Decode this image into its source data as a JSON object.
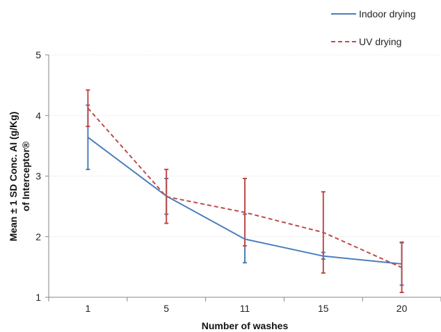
{
  "chart_data": {
    "type": "line",
    "categories": [
      "1",
      "5",
      "11",
      "15",
      "20"
    ],
    "xlabel": "Number of washes",
    "ylabel_lines": [
      "Mean ± 1 SD Conc. AI (g/Kg)",
      "of Interceptor®"
    ],
    "ylim": [
      1,
      5
    ],
    "yticks": [
      "1",
      "2",
      "3",
      "4",
      "5"
    ],
    "grid": true,
    "legend_position": "top-right",
    "series": [
      {
        "name": "Indoor drying",
        "color": "#4a7ebb",
        "dash": "solid",
        "values": [
          3.64,
          2.67,
          1.96,
          1.68,
          1.55
        ],
        "err_low": [
          3.11,
          2.37,
          1.57,
          1.63,
          1.2
        ],
        "err_high": [
          4.17,
          2.96,
          2.37,
          1.74,
          1.9
        ]
      },
      {
        "name": "UV drying",
        "color": "#be4b48",
        "dash": "dashed",
        "values": [
          4.12,
          2.66,
          2.4,
          2.07,
          1.49
        ],
        "err_low": [
          3.82,
          2.22,
          1.85,
          1.4,
          1.08
        ],
        "err_high": [
          4.42,
          3.11,
          2.96,
          2.74,
          1.91
        ]
      }
    ]
  }
}
